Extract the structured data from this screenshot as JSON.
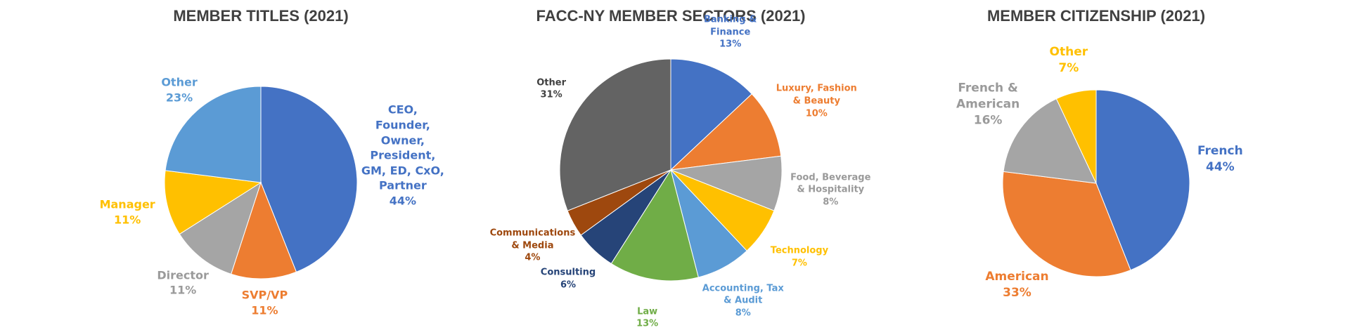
{
  "chart_data": [
    {
      "type": "pie",
      "title": "MEMBER TITLES (2021)",
      "categories": [
        "CEO, Founder, Owner, President, GM, ED, CxO, Partner",
        "SVP/VP",
        "Director",
        "Manager",
        "Other"
      ],
      "values": [
        44,
        11,
        11,
        11,
        23
      ],
      "value_labels": [
        "44%",
        "11%",
        "11%",
        "11%",
        "23%"
      ],
      "colors": [
        "#4472c4",
        "#ed7d31",
        "#a5a5a5",
        "#ffc000",
        "#5b9bd5"
      ]
    },
    {
      "type": "pie",
      "title": "FACC-NY MEMBER SECTORS (2021)",
      "categories": [
        "Banking & Finance",
        "Luxury, Fashion & Beauty",
        "Food, Beverage & Hospitality",
        "Technology",
        "Accounting, Tax & Audit",
        "Law",
        "Consulting",
        "Communications & Media",
        "Other"
      ],
      "values": [
        13,
        10,
        8,
        7,
        8,
        13,
        6,
        4,
        31
      ],
      "value_labels": [
        "13%",
        "10%",
        "8%",
        "7%",
        "8%",
        "13%",
        "6%",
        "4%",
        "31%"
      ],
      "colors": [
        "#4472c4",
        "#ed7d31",
        "#a5a5a5",
        "#ffc000",
        "#5b9bd5",
        "#70ad47",
        "#264478",
        "#9e480e",
        "#636363"
      ]
    },
    {
      "type": "pie",
      "title": "MEMBER CITIZENSHIP (2021)",
      "categories": [
        "French",
        "American",
        "French & American",
        "Other"
      ],
      "values": [
        44,
        33,
        16,
        7
      ],
      "value_labels": [
        "44%",
        "33%",
        "16%",
        "7%"
      ],
      "colors": [
        "#4472c4",
        "#ed7d31",
        "#a5a5a5",
        "#ffc000"
      ]
    }
  ]
}
